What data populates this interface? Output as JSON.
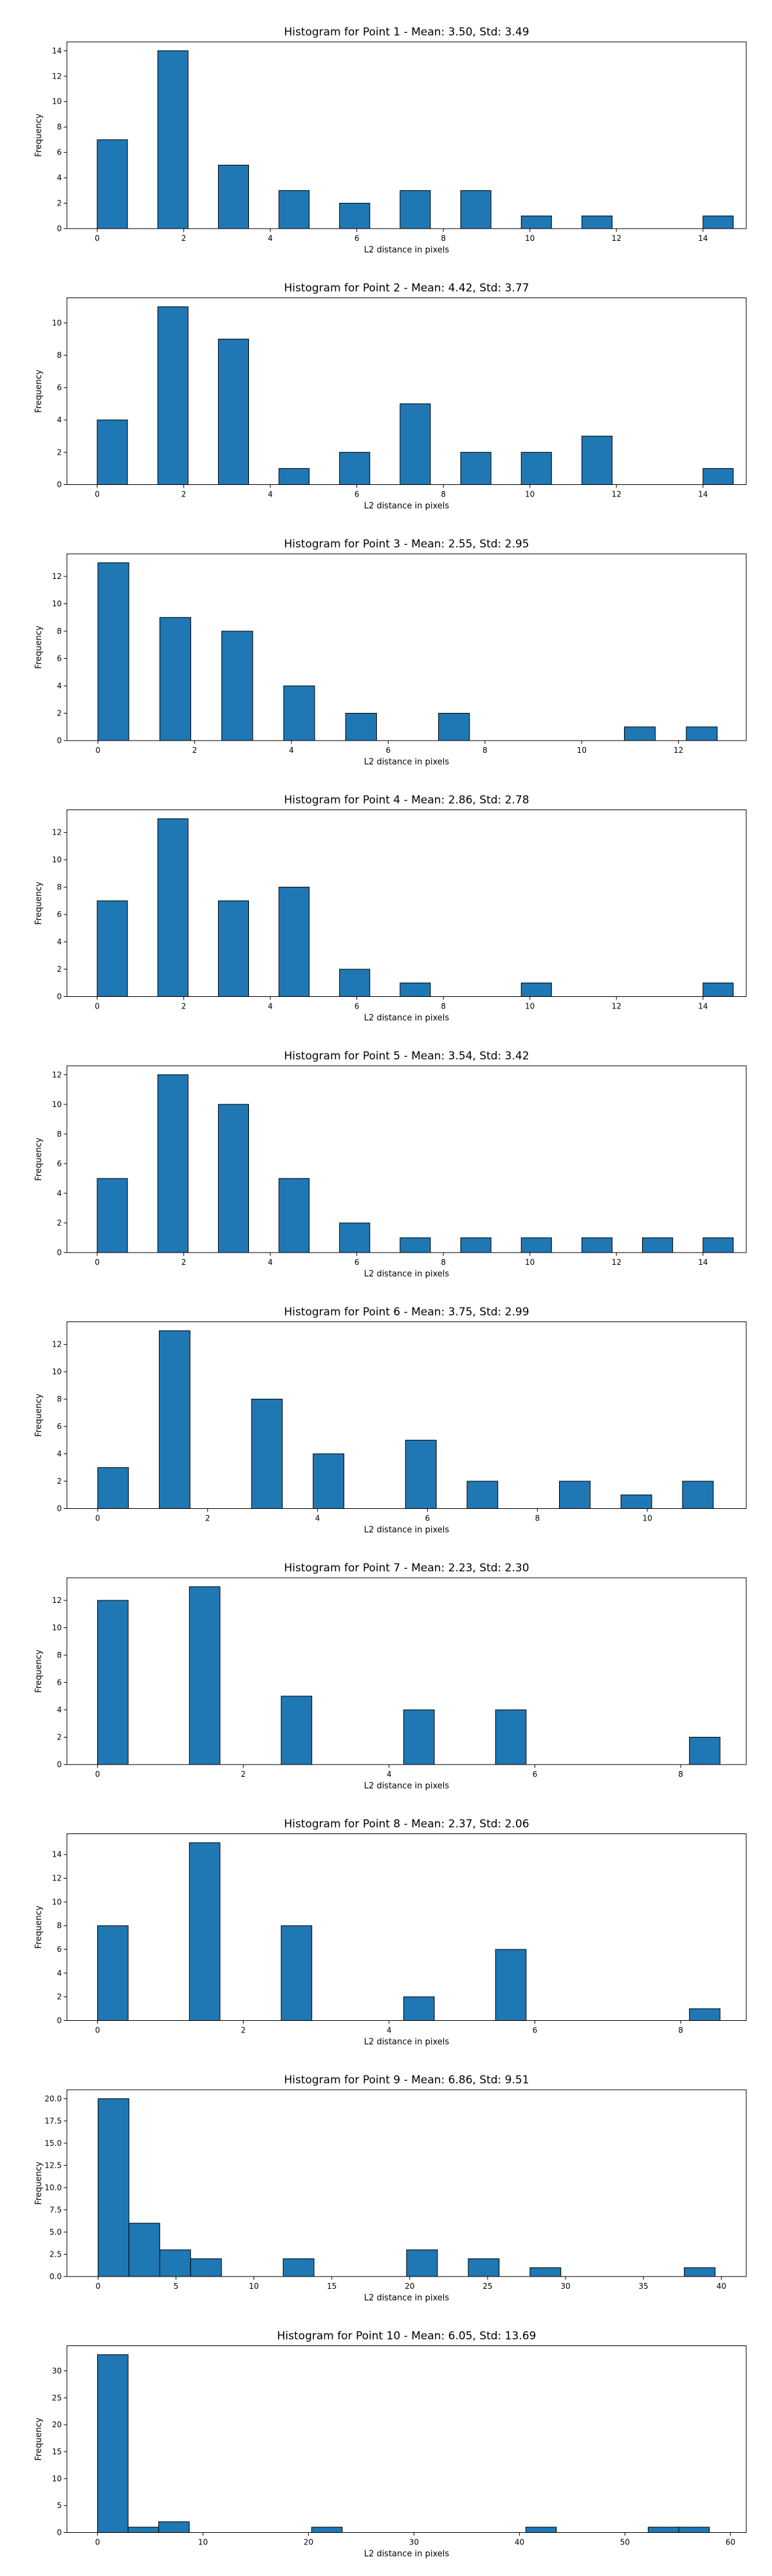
{
  "style": {
    "bar_color": "#1f77b4",
    "bar_edge": "#000000"
  },
  "chart_data": [
    {
      "type": "bar",
      "title": "Histogram for Point 1 - Mean: 3.50, Std: 3.49",
      "xlabel": "L2 distance in pixels",
      "ylabel": "Frequency",
      "xlim": [
        -0.7,
        15.0
      ],
      "ylim": [
        0,
        14.7
      ],
      "xticks": [
        0,
        2,
        4,
        6,
        8,
        10,
        12,
        14
      ],
      "yticks": [
        0,
        2,
        4,
        6,
        8,
        10,
        12,
        14
      ],
      "bin_width": 0.7,
      "bins": [
        {
          "x": 0.0,
          "value": 7
        },
        {
          "x": 1.4,
          "value": 14
        },
        {
          "x": 2.8,
          "value": 5
        },
        {
          "x": 4.2,
          "value": 3
        },
        {
          "x": 5.6,
          "value": 2
        },
        {
          "x": 7.0,
          "value": 3
        },
        {
          "x": 8.4,
          "value": 3
        },
        {
          "x": 9.8,
          "value": 1
        },
        {
          "x": 11.2,
          "value": 1
        },
        {
          "x": 14.0,
          "value": 1
        }
      ]
    },
    {
      "type": "bar",
      "title": "Histogram for Point 2 - Mean: 4.42, Std: 3.77",
      "xlabel": "L2 distance in pixels",
      "ylabel": "Frequency",
      "xlim": [
        -0.7,
        15.0
      ],
      "ylim": [
        0,
        11.55
      ],
      "xticks": [
        0,
        2,
        4,
        6,
        8,
        10,
        12,
        14
      ],
      "yticks": [
        0,
        2,
        4,
        6,
        8,
        10
      ],
      "bin_width": 0.7,
      "bins": [
        {
          "x": 0.0,
          "value": 4
        },
        {
          "x": 1.4,
          "value": 11
        },
        {
          "x": 2.8,
          "value": 9
        },
        {
          "x": 4.2,
          "value": 1
        },
        {
          "x": 5.6,
          "value": 2
        },
        {
          "x": 7.0,
          "value": 5
        },
        {
          "x": 8.4,
          "value": 2
        },
        {
          "x": 9.8,
          "value": 2
        },
        {
          "x": 11.2,
          "value": 3
        },
        {
          "x": 14.0,
          "value": 1
        }
      ]
    },
    {
      "type": "bar",
      "title": "Histogram for Point 3 - Mean: 2.55, Std: 2.95",
      "xlabel": "L2 distance in pixels",
      "ylabel": "Frequency",
      "xlim": [
        -0.64,
        13.4
      ],
      "ylim": [
        0,
        13.65
      ],
      "xticks": [
        0,
        2,
        4,
        6,
        8,
        10,
        12
      ],
      "yticks": [
        0,
        2,
        4,
        6,
        8,
        10,
        12
      ],
      "bin_width": 0.64,
      "bins": [
        {
          "x": 0.0,
          "value": 13
        },
        {
          "x": 1.28,
          "value": 9
        },
        {
          "x": 2.56,
          "value": 8
        },
        {
          "x": 3.84,
          "value": 4
        },
        {
          "x": 5.12,
          "value": 2
        },
        {
          "x": 7.04,
          "value": 2
        },
        {
          "x": 10.88,
          "value": 1
        },
        {
          "x": 12.16,
          "value": 1
        }
      ]
    },
    {
      "type": "bar",
      "title": "Histogram for Point 4 - Mean: 2.86, Std: 2.78",
      "xlabel": "L2 distance in pixels",
      "ylabel": "Frequency",
      "xlim": [
        -0.7,
        15.0
      ],
      "ylim": [
        0,
        13.65
      ],
      "xticks": [
        0,
        2,
        4,
        6,
        8,
        10,
        12,
        14
      ],
      "yticks": [
        0,
        2,
        4,
        6,
        8,
        10,
        12
      ],
      "bin_width": 0.7,
      "bins": [
        {
          "x": 0.0,
          "value": 7
        },
        {
          "x": 1.4,
          "value": 13
        },
        {
          "x": 2.8,
          "value": 7
        },
        {
          "x": 4.2,
          "value": 8
        },
        {
          "x": 5.6,
          "value": 2
        },
        {
          "x": 7.0,
          "value": 1
        },
        {
          "x": 9.8,
          "value": 1
        },
        {
          "x": 14.0,
          "value": 1
        }
      ]
    },
    {
      "type": "bar",
      "title": "Histogram for Point 5 - Mean: 3.54, Std: 3.42",
      "xlabel": "L2 distance in pixels",
      "ylabel": "Frequency",
      "xlim": [
        -0.7,
        15.0
      ],
      "ylim": [
        0,
        12.6
      ],
      "xticks": [
        0,
        2,
        4,
        6,
        8,
        10,
        12,
        14
      ],
      "yticks": [
        0,
        2,
        4,
        6,
        8,
        10,
        12
      ],
      "bin_width": 0.7,
      "bins": [
        {
          "x": 0.0,
          "value": 5
        },
        {
          "x": 1.4,
          "value": 12
        },
        {
          "x": 2.8,
          "value": 10
        },
        {
          "x": 4.2,
          "value": 5
        },
        {
          "x": 5.6,
          "value": 2
        },
        {
          "x": 7.0,
          "value": 1
        },
        {
          "x": 8.4,
          "value": 1
        },
        {
          "x": 9.8,
          "value": 1
        },
        {
          "x": 11.2,
          "value": 1
        },
        {
          "x": 12.6,
          "value": 1
        },
        {
          "x": 14.0,
          "value": 1
        }
      ]
    },
    {
      "type": "bar",
      "title": "Histogram for Point 6 - Mean: 3.75, Std: 2.99",
      "xlabel": "L2 distance in pixels",
      "ylabel": "Frequency",
      "xlim": [
        -0.56,
        11.8
      ],
      "ylim": [
        0,
        13.65
      ],
      "xticks": [
        0,
        2,
        4,
        6,
        8,
        10
      ],
      "yticks": [
        0,
        2,
        4,
        6,
        8,
        10,
        12
      ],
      "bin_width": 0.56,
      "bins": [
        {
          "x": 0.0,
          "value": 3
        },
        {
          "x": 1.12,
          "value": 13
        },
        {
          "x": 2.8,
          "value": 8
        },
        {
          "x": 3.92,
          "value": 4
        },
        {
          "x": 5.6,
          "value": 5
        },
        {
          "x": 6.72,
          "value": 2
        },
        {
          "x": 8.4,
          "value": 2
        },
        {
          "x": 9.52,
          "value": 1
        },
        {
          "x": 10.64,
          "value": 2
        }
      ]
    },
    {
      "type": "bar",
      "title": "Histogram for Point 7 - Mean: 2.23, Std: 2.30",
      "xlabel": "L2 distance in pixels",
      "ylabel": "Frequency",
      "xlim": [
        -0.42,
        8.9
      ],
      "ylim": [
        0,
        13.65
      ],
      "xticks": [
        0,
        2,
        4,
        6,
        8
      ],
      "yticks": [
        0,
        2,
        4,
        6,
        8,
        10,
        12
      ],
      "bin_width": 0.42,
      "bins": [
        {
          "x": 0.0,
          "value": 12
        },
        {
          "x": 1.26,
          "value": 13
        },
        {
          "x": 2.52,
          "value": 5
        },
        {
          "x": 4.2,
          "value": 4
        },
        {
          "x": 5.46,
          "value": 4
        },
        {
          "x": 8.12,
          "value": 2
        }
      ]
    },
    {
      "type": "bar",
      "title": "Histogram for Point 8 - Mean: 2.37, Std: 2.06",
      "xlabel": "L2 distance in pixels",
      "ylabel": "Frequency",
      "xlim": [
        -0.42,
        8.9
      ],
      "ylim": [
        0,
        15.75
      ],
      "xticks": [
        0,
        2,
        4,
        6,
        8
      ],
      "yticks": [
        0,
        2,
        4,
        6,
        8,
        10,
        12,
        14
      ],
      "bin_width": 0.42,
      "bins": [
        {
          "x": 0.0,
          "value": 8
        },
        {
          "x": 1.26,
          "value": 15
        },
        {
          "x": 2.52,
          "value": 8
        },
        {
          "x": 4.2,
          "value": 2
        },
        {
          "x": 5.46,
          "value": 6
        },
        {
          "x": 8.12,
          "value": 1
        }
      ]
    },
    {
      "type": "bar",
      "title": "Histogram for Point 9 - Mean: 6.86, Std: 9.51",
      "xlabel": "L2 distance in pixels",
      "ylabel": "Frequency",
      "xlim": [
        -2.0,
        41.6
      ],
      "ylim": [
        0,
        21.0
      ],
      "xticks": [
        0,
        5,
        10,
        15,
        20,
        25,
        30,
        35,
        40
      ],
      "yticks": [
        0,
        2.5,
        5.0,
        7.5,
        10.0,
        12.5,
        15.0,
        17.5,
        20.0
      ],
      "ytick_labels": [
        "0.0",
        "2.5",
        "5.0",
        "7.5",
        "10.0",
        "12.5",
        "15.0",
        "17.5",
        "20.0"
      ],
      "bin_width": 1.98,
      "bins": [
        {
          "x": 0.0,
          "value": 20
        },
        {
          "x": 1.98,
          "value": 6
        },
        {
          "x": 3.96,
          "value": 3
        },
        {
          "x": 5.94,
          "value": 2
        },
        {
          "x": 11.88,
          "value": 2
        },
        {
          "x": 19.8,
          "value": 3
        },
        {
          "x": 23.76,
          "value": 2
        },
        {
          "x": 27.72,
          "value": 1
        },
        {
          "x": 37.62,
          "value": 1
        }
      ]
    },
    {
      "type": "bar",
      "title": "Histogram for Point 10 - Mean: 6.05, Std: 13.69",
      "xlabel": "L2 distance in pixels",
      "ylabel": "Frequency",
      "xlim": [
        -2.9,
        61.5
      ],
      "ylim": [
        0,
        34.65
      ],
      "xticks": [
        0,
        10,
        20,
        30,
        40,
        50,
        60
      ],
      "yticks": [
        0,
        5,
        10,
        15,
        20,
        25,
        30
      ],
      "bin_width": 2.9,
      "bins": [
        {
          "x": 0.0,
          "value": 33
        },
        {
          "x": 2.9,
          "value": 1
        },
        {
          "x": 5.8,
          "value": 2
        },
        {
          "x": 20.3,
          "value": 1
        },
        {
          "x": 40.6,
          "value": 1
        },
        {
          "x": 52.2,
          "value": 1
        },
        {
          "x": 55.1,
          "value": 1
        }
      ]
    }
  ]
}
